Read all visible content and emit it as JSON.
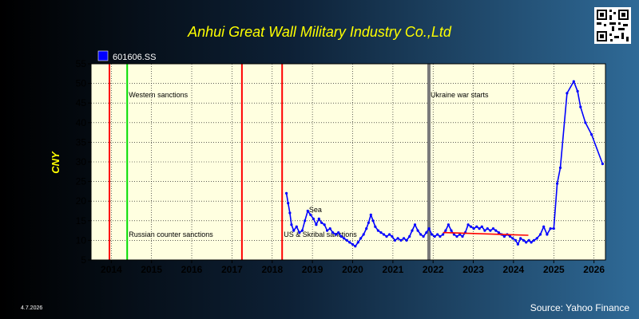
{
  "chart_data": {
    "type": "line",
    "title": "Anhui Great Wall Military Industry Co.,Ltd",
    "ylabel": "CNY",
    "xlabel": "",
    "xlim": [
      "2013-07-01",
      "2026-04-15"
    ],
    "ylim": [
      5,
      55
    ],
    "y_ticks": [
      5,
      10,
      15,
      20,
      25,
      30,
      35,
      40,
      45,
      50,
      55
    ],
    "x_ticks": [
      {
        "label": "2014",
        "date": "2014-01-01"
      },
      {
        "label": "2015",
        "date": "2015-01-01"
      },
      {
        "label": "2016",
        "date": "2016-01-01"
      },
      {
        "label": "2017",
        "date": "2017-01-01"
      },
      {
        "label": "2018",
        "date": "2018-01-01"
      },
      {
        "label": "2019",
        "date": "2019-01-01"
      },
      {
        "label": "2020",
        "date": "2020-01-01"
      },
      {
        "label": "2021",
        "date": "2021-01-01"
      },
      {
        "label": "2022",
        "date": "2022-01-01"
      },
      {
        "label": "2023",
        "date": "2023-01-01"
      },
      {
        "label": "2024",
        "date": "2024-01-01"
      },
      {
        "label": "2025",
        "date": "2025-01-01"
      },
      {
        "label": "2026",
        "date": "2026-01-01"
      }
    ],
    "grid": true,
    "legend": {
      "position": "top-left",
      "entries": [
        "601606.SS"
      ]
    },
    "series": [
      {
        "name": "601606.SS",
        "color": "#0000ff",
        "points": [
          [
            "2018-05-10",
            22.0
          ],
          [
            "2018-05-25",
            19.5
          ],
          [
            "2018-06-10",
            17.0
          ],
          [
            "2018-06-25",
            14.0
          ],
          [
            "2018-07-15",
            12.5
          ],
          [
            "2018-08-10",
            13.5
          ],
          [
            "2018-09-05",
            12.0
          ],
          [
            "2018-10-01",
            12.5
          ],
          [
            "2018-10-25",
            15.0
          ],
          [
            "2018-11-20",
            17.5
          ],
          [
            "2018-12-15",
            16.5
          ],
          [
            "2019-01-10",
            15.5
          ],
          [
            "2019-02-05",
            14.0
          ],
          [
            "2019-03-01",
            15.5
          ],
          [
            "2019-03-25",
            14.5
          ],
          [
            "2019-04-20",
            14.0
          ],
          [
            "2019-05-15",
            12.5
          ],
          [
            "2019-06-10",
            13.0
          ],
          [
            "2019-07-05",
            12.0
          ],
          [
            "2019-08-01",
            11.5
          ],
          [
            "2019-08-25",
            12.0
          ],
          [
            "2019-09-20",
            11.0
          ],
          [
            "2019-10-15",
            10.5
          ],
          [
            "2019-11-10",
            10.0
          ],
          [
            "2019-12-05",
            9.5
          ],
          [
            "2020-01-01",
            9.0
          ],
          [
            "2020-01-25",
            8.5
          ],
          [
            "2020-02-20",
            9.5
          ],
          [
            "2020-03-15",
            10.5
          ],
          [
            "2020-04-10",
            11.5
          ],
          [
            "2020-05-05",
            13.0
          ],
          [
            "2020-05-25",
            14.5
          ],
          [
            "2020-06-15",
            16.5
          ],
          [
            "2020-07-05",
            15.0
          ],
          [
            "2020-07-25",
            13.5
          ],
          [
            "2020-08-20",
            12.5
          ],
          [
            "2020-09-15",
            12.0
          ],
          [
            "2020-10-10",
            11.5
          ],
          [
            "2020-11-05",
            11.0
          ],
          [
            "2020-12-01",
            11.5
          ],
          [
            "2020-12-25",
            11.0
          ],
          [
            "2021-01-20",
            10.0
          ],
          [
            "2021-02-15",
            10.5
          ],
          [
            "2021-03-15",
            10.0
          ],
          [
            "2021-04-10",
            10.5
          ],
          [
            "2021-05-05",
            10.0
          ],
          [
            "2021-06-01",
            11.0
          ],
          [
            "2021-06-25",
            12.5
          ],
          [
            "2021-07-20",
            14.0
          ],
          [
            "2021-08-15",
            12.5
          ],
          [
            "2021-09-10",
            11.5
          ],
          [
            "2021-10-05",
            11.0
          ],
          [
            "2021-11-01",
            12.0
          ],
          [
            "2021-11-25",
            13.0
          ],
          [
            "2021-12-20",
            11.5
          ],
          [
            "2022-01-15",
            11.0
          ],
          [
            "2022-02-10",
            11.5
          ],
          [
            "2022-03-05",
            11.0
          ],
          [
            "2022-04-01",
            11.5
          ],
          [
            "2022-04-25",
            12.5
          ],
          [
            "2022-05-20",
            14.0
          ],
          [
            "2022-06-15",
            12.5
          ],
          [
            "2022-07-10",
            11.5
          ],
          [
            "2022-08-05",
            11.0
          ],
          [
            "2022-09-01",
            11.5
          ],
          [
            "2022-09-25",
            11.0
          ],
          [
            "2022-10-20",
            12.0
          ],
          [
            "2022-11-15",
            14.0
          ],
          [
            "2022-12-10",
            13.5
          ],
          [
            "2023-01-05",
            13.0
          ],
          [
            "2023-02-01",
            13.5
          ],
          [
            "2023-02-25",
            13.0
          ],
          [
            "2023-03-20",
            13.5
          ],
          [
            "2023-04-15",
            12.5
          ],
          [
            "2023-05-10",
            13.0
          ],
          [
            "2023-06-05",
            12.5
          ],
          [
            "2023-07-01",
            13.0
          ],
          [
            "2023-07-25",
            12.5
          ],
          [
            "2023-08-20",
            12.0
          ],
          [
            "2023-09-15",
            11.5
          ],
          [
            "2023-10-10",
            11.0
          ],
          [
            "2023-11-05",
            11.5
          ],
          [
            "2023-12-01",
            11.0
          ],
          [
            "2023-12-25",
            10.5
          ],
          [
            "2024-01-20",
            10.0
          ],
          [
            "2024-02-10",
            9.0
          ],
          [
            "2024-03-05",
            10.5
          ],
          [
            "2024-04-01",
            10.0
          ],
          [
            "2024-04-25",
            9.5
          ],
          [
            "2024-05-20",
            10.0
          ],
          [
            "2024-06-10",
            9.5
          ],
          [
            "2024-07-05",
            10.0
          ],
          [
            "2024-08-01",
            10.5
          ],
          [
            "2024-09-01",
            11.5
          ],
          [
            "2024-10-01",
            13.5
          ],
          [
            "2024-11-01",
            11.5
          ],
          [
            "2024-12-01",
            13.0
          ],
          [
            "2025-01-01",
            13.0
          ],
          [
            "2025-02-01",
            24.5
          ],
          [
            "2025-03-01",
            28.5
          ],
          [
            "2025-05-01",
            47.5
          ],
          [
            "2025-07-01",
            50.5
          ],
          [
            "2025-08-05",
            48.0
          ],
          [
            "2025-09-01",
            44.0
          ],
          [
            "2025-10-15",
            40.0
          ],
          [
            "2025-12-10",
            37.0
          ],
          [
            "2026-03-20",
            29.5
          ]
        ]
      },
      {
        "name": "",
        "color": "#ff0000",
        "points": [
          [
            "2022-04-01",
            12.0
          ],
          [
            "2024-05-15",
            11.3
          ]
        ]
      }
    ],
    "events": [
      {
        "date": "2013-12-15",
        "color": "#ff0000",
        "label": "",
        "label_row": "none"
      },
      {
        "date": "2014-05-25",
        "color": "#00dd00",
        "label": "Western sanctions",
        "label_row": "top"
      },
      {
        "date": "2014-05-25",
        "color": "#00dd00",
        "label": "Russian counter sanctions",
        "label_row": "bottom"
      },
      {
        "date": "2017-04-01",
        "color": "#ff0000",
        "label": "",
        "label_row": "none"
      },
      {
        "date": "2018-04-01",
        "color": "#ff0000",
        "label": "US & Skribal sanctions",
        "label_row": "bottom"
      },
      {
        "date": "2021-11-24",
        "color": "#7a7a7a",
        "label": "Ukraine war starts",
        "label_row": "top"
      }
    ],
    "annotations": [
      {
        "text": "Sea",
        "date": "2018-12-01",
        "value": 17.2
      }
    ]
  },
  "footer": {
    "date_text": "4.7.2026",
    "source_text": "Source: Yahoo Finance"
  },
  "colors": {
    "plot_background": "#ffffe0",
    "title_color": "#ffff00",
    "axis_text_color": "#ffff00",
    "tick_label_color": "#000000",
    "footer_text_color": "#ffffff"
  },
  "icons": {
    "qr": "qr-code-icon"
  }
}
